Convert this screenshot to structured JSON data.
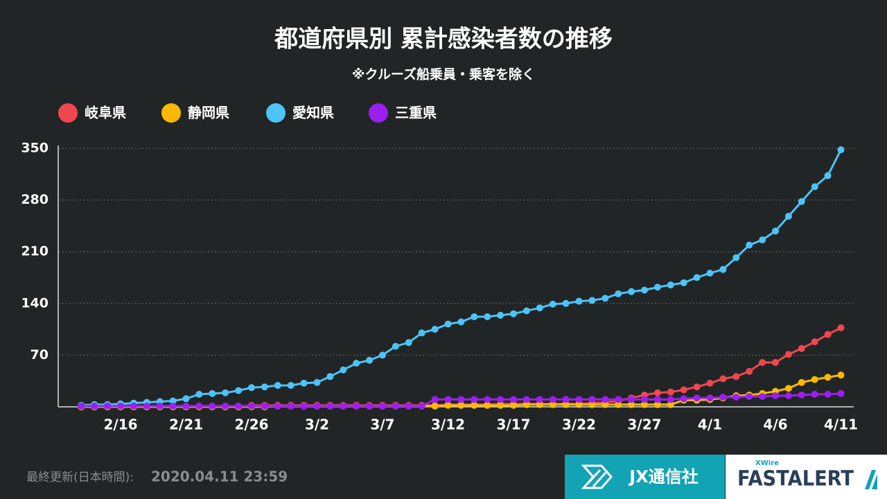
{
  "chart_data": {
    "type": "line",
    "title": "都道府県別 累計感染者数の推移",
    "subtitle": "※クルーズ船乗員・乗客を除く",
    "categories": [
      null,
      null,
      null,
      "2/16",
      null,
      null,
      null,
      null,
      "2/21",
      null,
      null,
      null,
      null,
      "2/26",
      null,
      null,
      null,
      null,
      "3/2",
      null,
      null,
      null,
      null,
      "3/7",
      null,
      null,
      null,
      null,
      "3/12",
      null,
      null,
      null,
      null,
      "3/17",
      null,
      null,
      null,
      null,
      "3/22",
      null,
      null,
      null,
      null,
      "3/27",
      null,
      null,
      null,
      null,
      "4/1",
      null,
      null,
      null,
      null,
      "4/6",
      null,
      null,
      null,
      null,
      "4/11"
    ],
    "series": [
      {
        "name": "岐阜県",
        "color": "#f0474e",
        "values": [
          0,
          0,
          0,
          0,
          0,
          0,
          0,
          0,
          0,
          0,
          0,
          0,
          0,
          2,
          2,
          2,
          2,
          2,
          2,
          2,
          2,
          2,
          2,
          2,
          2,
          2,
          2,
          2,
          3,
          3,
          3,
          3,
          4,
          4,
          4,
          4,
          4,
          4,
          4,
          5,
          6,
          8,
          12,
          16,
          19,
          20,
          23,
          27,
          32,
          38,
          41,
          48,
          60,
          60,
          71,
          79,
          88,
          98,
          107
        ]
      },
      {
        "name": "静岡県",
        "color": "#fcb900",
        "values": [
          0,
          0,
          0,
          0,
          0,
          0,
          0,
          0,
          0,
          0,
          0,
          0,
          0,
          0,
          0,
          1,
          1,
          1,
          1,
          1,
          1,
          1,
          1,
          1,
          1,
          1,
          1,
          1,
          2,
          2,
          2,
          2,
          2,
          2,
          3,
          3,
          3,
          3,
          3,
          3,
          3,
          3,
          3,
          3,
          3,
          3,
          9,
          9,
          10,
          12,
          15,
          16,
          18,
          21,
          25,
          33,
          37,
          40,
          43
        ]
      },
      {
        "name": "愛知県",
        "color": "#4dc3f7",
        "values": [
          2,
          3,
          3,
          4,
          5,
          6,
          7,
          8,
          11,
          17,
          18,
          19,
          22,
          26,
          27,
          29,
          29,
          32,
          33,
          41,
          50,
          59,
          63,
          70,
          82,
          87,
          100,
          105,
          112,
          115,
          122,
          122,
          124,
          126,
          130,
          134,
          139,
          140,
          143,
          144,
          147,
          153,
          156,
          158,
          162,
          165,
          168,
          175,
          181,
          186,
          202,
          219,
          226,
          238,
          258,
          278,
          298,
          313,
          348
        ]
      },
      {
        "name": "三重県",
        "color": "#9b1ff0",
        "values": [
          1,
          1,
          1,
          1,
          1,
          1,
          1,
          1,
          1,
          1,
          1,
          1,
          1,
          1,
          1,
          1,
          1,
          1,
          1,
          1,
          1,
          1,
          1,
          1,
          1,
          1,
          1,
          10,
          10,
          10,
          10,
          10,
          10,
          10,
          10,
          10,
          10,
          10,
          10,
          10,
          10,
          10,
          10,
          10,
          10,
          10,
          11,
          12,
          12,
          13,
          13,
          14,
          14,
          15,
          15,
          16,
          17,
          17,
          18
        ]
      }
    ],
    "ylim": [
      0,
      350
    ],
    "yticks": [
      70,
      140,
      210,
      280,
      350
    ],
    "grid": true
  },
  "footer": {
    "updated_label": "最終更新(日本時間):",
    "updated_value": "2020.04.11 23:59",
    "brand": "JX通信社",
    "product_sub": "XWire",
    "product": "FASTALERT"
  }
}
